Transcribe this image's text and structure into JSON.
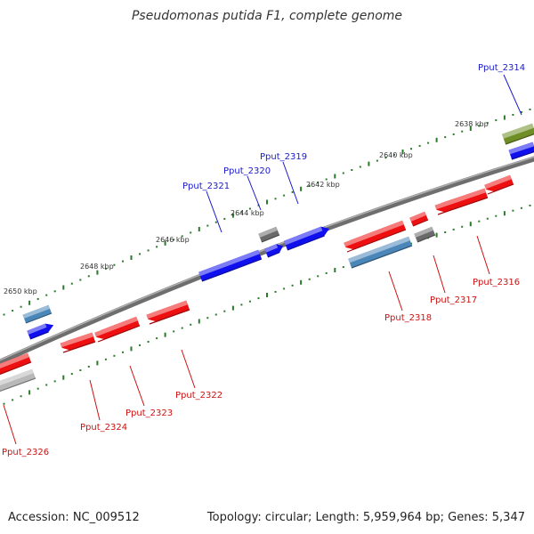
{
  "title": "Pseudomonas putida F1, complete genome",
  "footer": {
    "accession": "Accession: NC_009512",
    "summary": "Topology: circular; Length: 5,959,964 bp; Genes: 5,347"
  },
  "colors": {
    "backbone": "#808080",
    "forward_gene": "#1010ee",
    "forward_label": "#1a1acc",
    "reverse_gene": "#ee1010",
    "reverse_label": "#cc1111",
    "steel_gene": "#4a86b8",
    "gray_gene": "#6a6a6a",
    "olive_gene": "#6f8e25",
    "light_gray_gene": "#b8b8b8",
    "tick_major": "#2a7a2a",
    "tick_minor": "#2a7a2a"
  },
  "kbp_labels": [
    "2638 kbp",
    "2640 kbp",
    "2642 kbp",
    "2644 kbp",
    "2646 kbp",
    "2648 kbp",
    "2650 kbp"
  ],
  "gene_labels": {
    "forward": [
      "Pput_2314",
      "Pput_2319",
      "Pput_2320",
      "Pput_2321"
    ],
    "reverse": [
      "Pput_2316",
      "Pput_2317",
      "Pput_2318",
      "Pput_2322",
      "Pput_2323",
      "Pput_2324",
      "Pput_2326"
    ]
  }
}
